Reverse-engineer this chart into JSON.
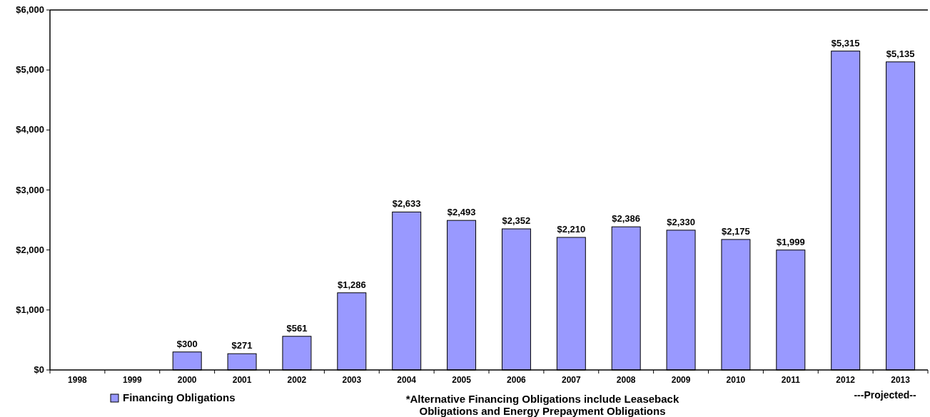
{
  "chart_data": {
    "type": "bar",
    "categories": [
      "1998",
      "1999",
      "2000",
      "2001",
      "2002",
      "2003",
      "2004",
      "2005",
      "2006",
      "2007",
      "2008",
      "2009",
      "2010",
      "2011",
      "2012",
      "2013"
    ],
    "series": [
      {
        "name": "Financing Obligations",
        "color": "#9999ff",
        "values": [
          0,
          0,
          300,
          271,
          561,
          1286,
          2633,
          2493,
          2352,
          2210,
          2386,
          2330,
          2175,
          1999,
          5315,
          5135
        ],
        "value_labels": [
          null,
          null,
          "$300",
          "$271",
          "$561",
          "$1,286",
          "$2,633",
          "$2,493",
          "$2,352",
          "$2,210",
          "$2,386",
          "$2,330",
          "$2,175",
          "$1,999",
          "$5,315",
          "$5,135"
        ]
      }
    ],
    "ylim": [
      0,
      6000
    ],
    "yticks": [
      {
        "value": 0,
        "label": "$0"
      },
      {
        "value": 1000,
        "label": "$1,000"
      },
      {
        "value": 2000,
        "label": "$2,000"
      },
      {
        "value": 3000,
        "label": "$3,000"
      },
      {
        "value": 4000,
        "label": "$4,000"
      },
      {
        "value": 5000,
        "label": "$5,000"
      },
      {
        "value": 6000,
        "label": "$6,000"
      }
    ],
    "grid": false,
    "legend": "bottom left",
    "annotations": [
      "---Projected--",
      "*Alternative Financing Obligations include Leaseback\nObligations and Energy Prepayment  Obligations"
    ]
  }
}
